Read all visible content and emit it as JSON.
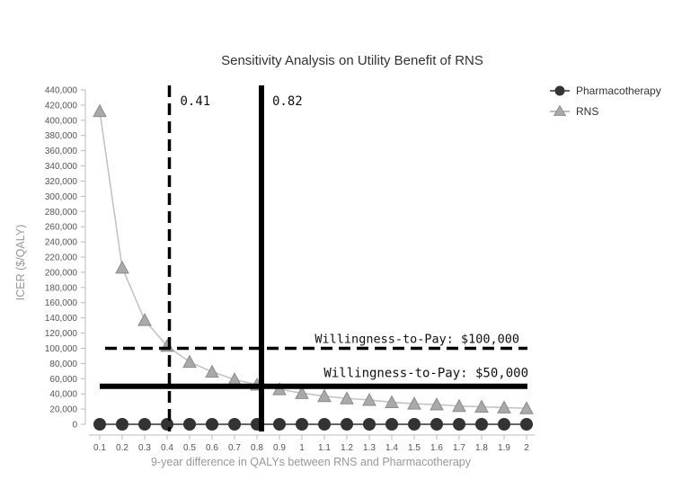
{
  "chart_data": {
    "type": "line",
    "title": "Sensitivity Analysis on Utility Benefit of RNS",
    "xlabel": "9-year difference in QALYs between RNS and Pharmacotherapy",
    "ylabel": "ICER ($/QALY)",
    "categories": [
      "0.1",
      "0.2",
      "0.3",
      "0.4",
      "0.5",
      "0.6",
      "0.7",
      "0.8",
      "0.9",
      "1",
      "1.1",
      "1.2",
      "1.3",
      "1.4",
      "1.5",
      "1.6",
      "1.7",
      "1.8",
      "1.9",
      "2"
    ],
    "ylim": [
      0,
      440000
    ],
    "yticks": [
      "0",
      "20,000",
      "40,000",
      "60,000",
      "80,000",
      "100,000",
      "120,000",
      "140,000",
      "160,000",
      "180,000",
      "200,000",
      "220,000",
      "240,000",
      "260,000",
      "280,000",
      "300,000",
      "320,000",
      "340,000",
      "360,000",
      "380,000",
      "400,000",
      "420,000",
      "440,000"
    ],
    "series": [
      {
        "name": "Pharmacotherapy",
        "marker": "circle",
        "color": "#333333",
        "values": [
          0,
          0,
          0,
          0,
          0,
          0,
          0,
          0,
          0,
          0,
          0,
          0,
          0,
          0,
          0,
          0,
          0,
          0,
          0,
          0
        ]
      },
      {
        "name": "RNS",
        "marker": "triangle",
        "color": "#a9a9a9",
        "values": [
          412000,
          206000,
          137000,
          103000,
          82000,
          69000,
          59000,
          52000,
          46000,
          41000,
          37000,
          34000,
          32000,
          29000,
          27000,
          26000,
          24000,
          23000,
          22000,
          21000
        ]
      }
    ],
    "legend_position": "top-right",
    "grid": false,
    "vlines": [
      {
        "x": 0.41,
        "label": "0.41",
        "style": "dashed"
      },
      {
        "x": 0.82,
        "label": "0.82",
        "style": "solid"
      }
    ],
    "hlines": [
      {
        "y": 100000,
        "label": "Willingness-to-Pay: $100,000",
        "style": "dashed"
      },
      {
        "y": 50000,
        "label": "Willingness-to-Pay: $50,000",
        "style": "solid"
      }
    ]
  }
}
